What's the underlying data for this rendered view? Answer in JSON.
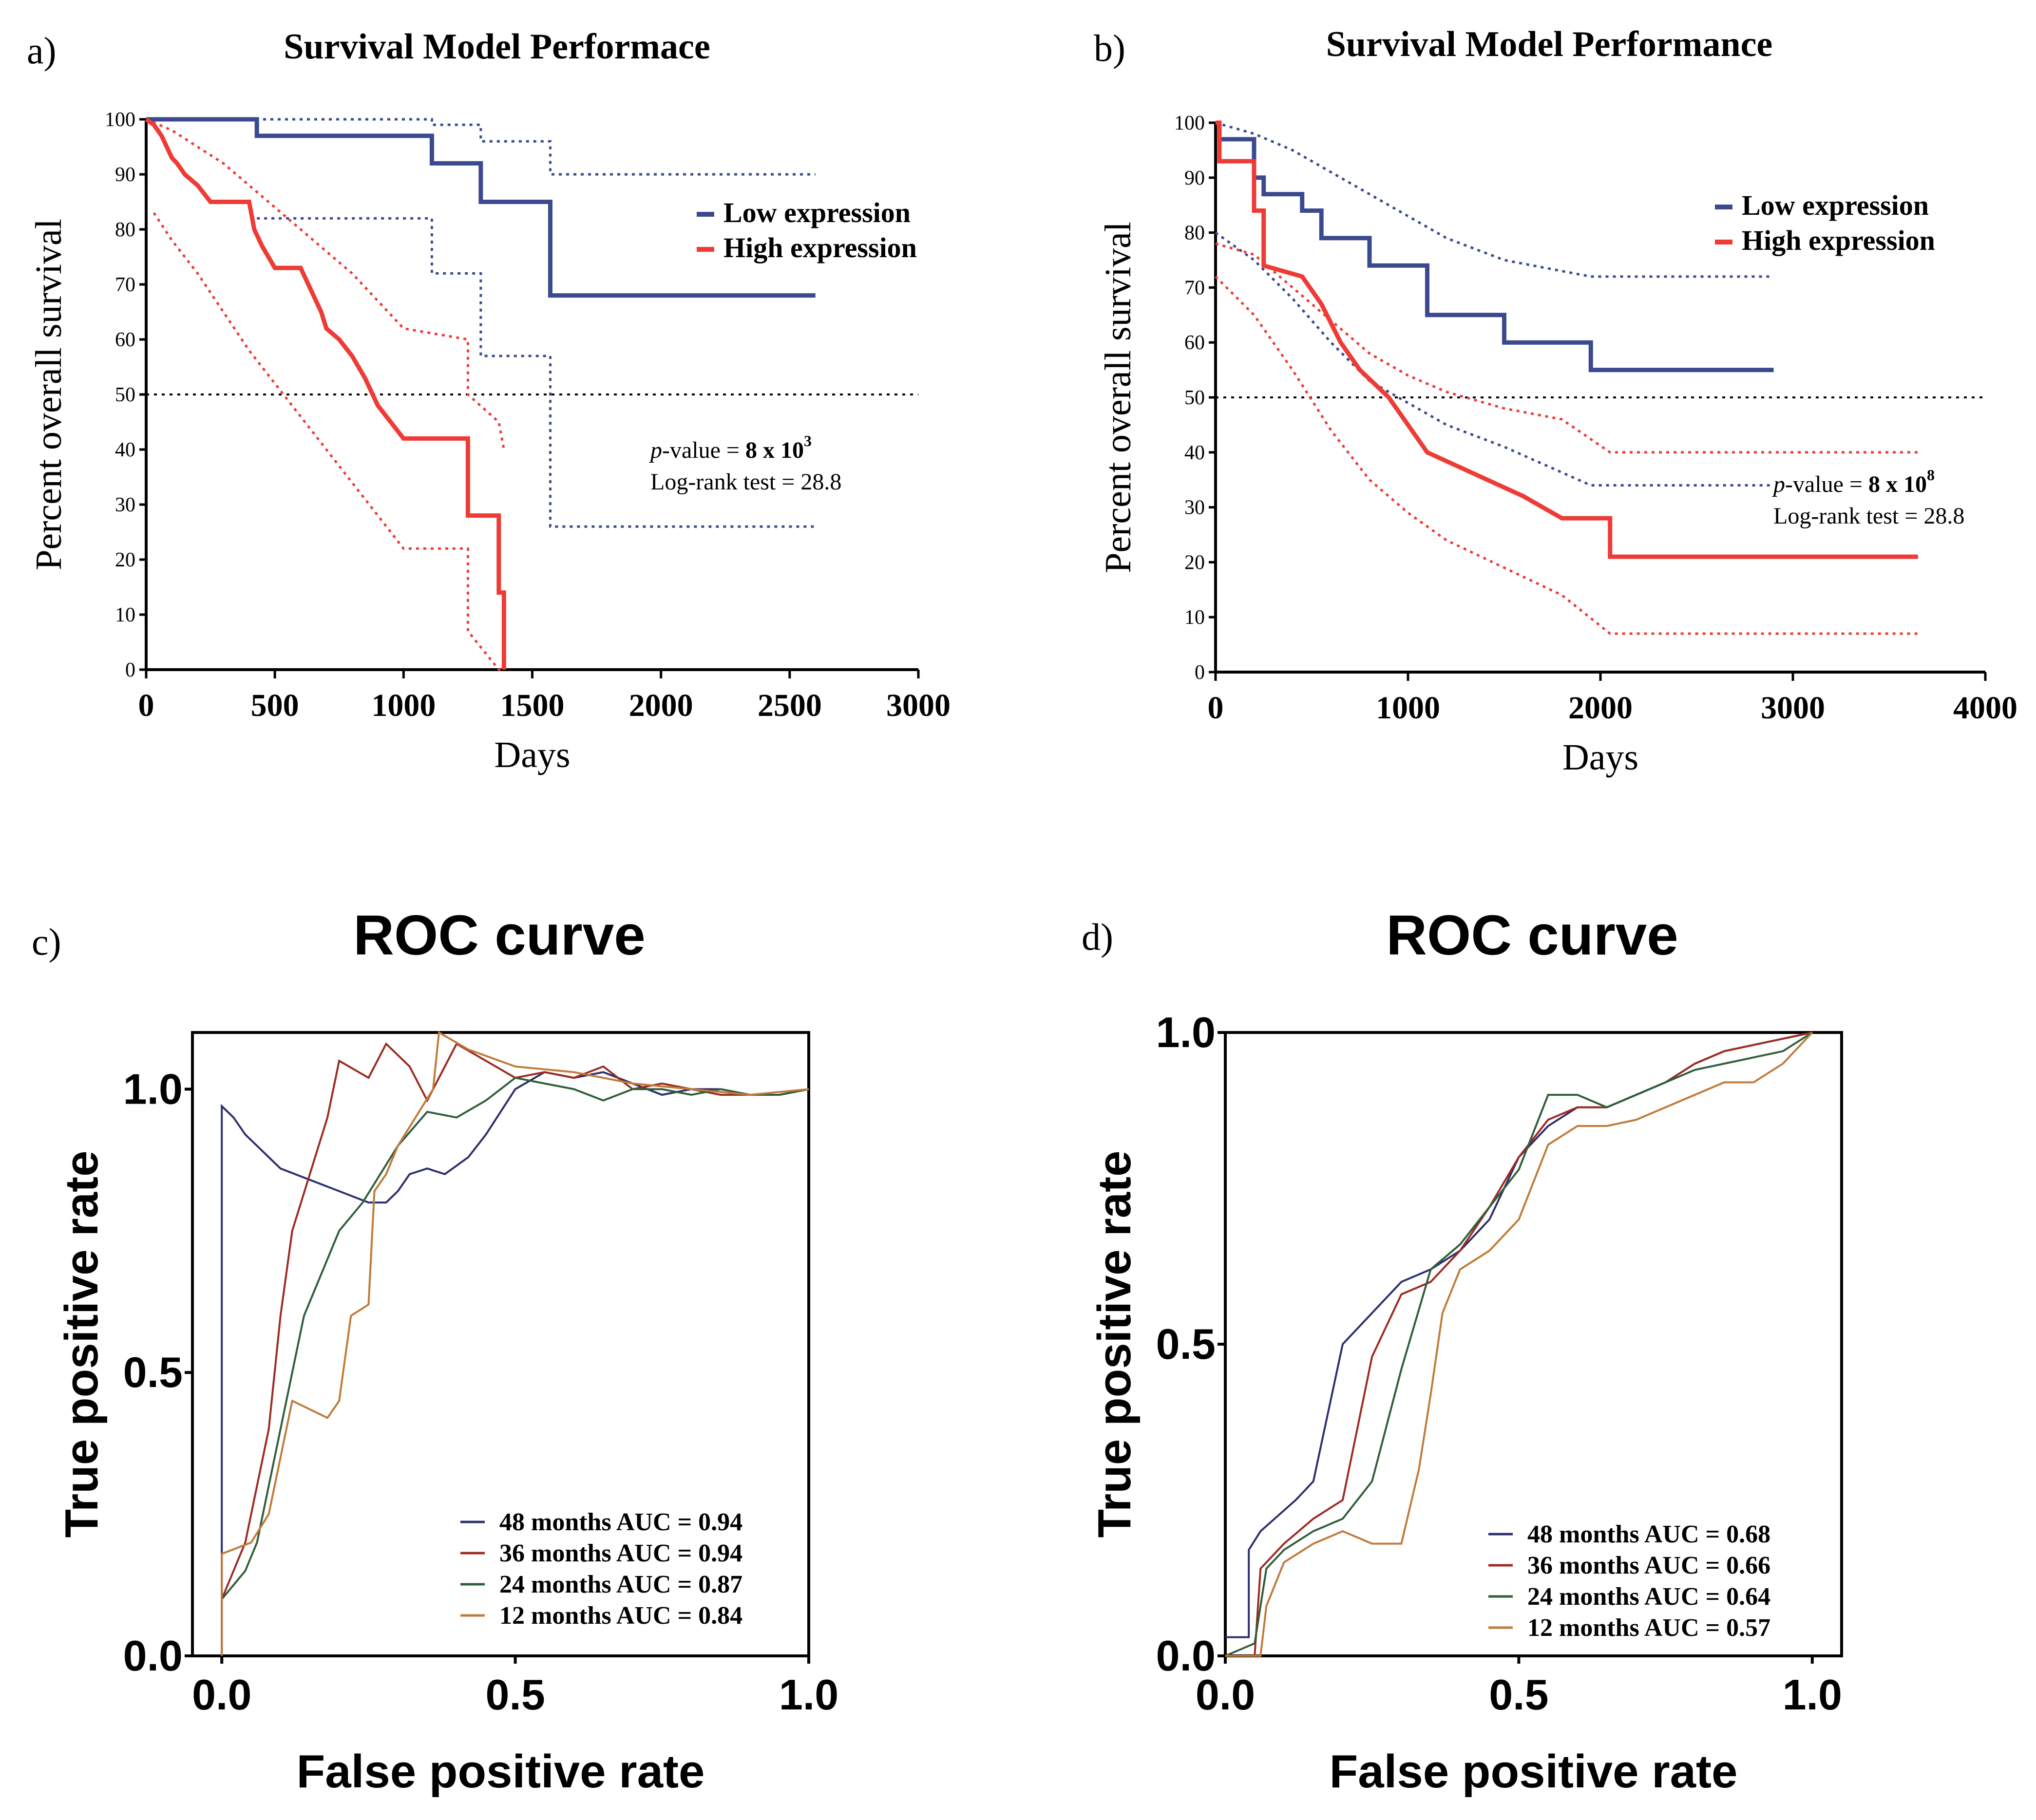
{
  "panel_labels": {
    "a": "a)",
    "b": "b)",
    "c": "c)",
    "d": "d)"
  },
  "colors": {
    "low": "#3b4a8f",
    "high": "#ee3b36",
    "roc48": "#2c2f6e",
    "roc36": "#9c2b22",
    "roc24": "#2f5e3a",
    "roc12": "#c07a3a",
    "axis": "#000000"
  },
  "chart_data": [
    {
      "type": "line",
      "panel": "a",
      "title": "Survival Model Performace",
      "xlabel": "Days",
      "ylabel": "Percent overall survival",
      "xlim": [
        0,
        3000
      ],
      "ylim": [
        0,
        100
      ],
      "xticks": [
        "0",
        "500",
        "1000",
        "1500",
        "2000",
        "2500",
        "3000"
      ],
      "yticks": [
        "0",
        "10",
        "20",
        "30",
        "40",
        "50",
        "60",
        "70",
        "80",
        "90",
        "100"
      ],
      "reference_line": 50,
      "annotation": {
        "p_prefix": "p",
        "p_text": "-value = ",
        "p_value": "8 x 10",
        "p_exp": "3",
        "logrank": "Log-rank test = 28.8"
      },
      "series": [
        {
          "name": "Low expression",
          "key": "low",
          "style": "solid",
          "x": [
            0,
            430,
            430,
            1110,
            1110,
            1300,
            1300,
            1570,
            1570,
            2600
          ],
          "y": [
            100,
            100,
            97,
            97,
            92,
            92,
            85,
            85,
            68,
            68
          ]
        },
        {
          "name": "Low CI upper",
          "key": "low",
          "style": "dotted",
          "x": [
            0,
            1110,
            1110,
            1300,
            1300,
            1570,
            1570,
            2600
          ],
          "y": [
            100,
            100,
            99,
            99,
            96,
            96,
            90,
            90
          ]
        },
        {
          "name": "Low CI lower",
          "key": "low",
          "style": "dotted",
          "x": [
            430,
            1110,
            1110,
            1300,
            1300,
            1570,
            1570,
            2600
          ],
          "y": [
            82,
            82,
            72,
            72,
            57,
            57,
            26,
            26
          ]
        },
        {
          "name": "High expression",
          "key": "high",
          "style": "solid",
          "x": [
            0,
            30,
            60,
            80,
            100,
            120,
            150,
            200,
            250,
            400,
            420,
            450,
            500,
            550,
            600,
            630,
            650,
            680,
            700,
            750,
            800,
            850,
            900,
            950,
            1000,
            1250,
            1250,
            1370,
            1370,
            1390,
            1390
          ],
          "y": [
            100,
            99,
            97,
            95,
            93,
            92,
            90,
            88,
            85,
            85,
            80,
            77,
            73,
            73,
            73,
            70,
            68,
            65,
            62,
            60,
            57,
            53,
            48,
            45,
            42,
            42,
            28,
            28,
            14,
            14,
            0
          ]
        },
        {
          "name": "High CI upper",
          "key": "high",
          "style": "dotted",
          "x": [
            0,
            100,
            200,
            300,
            400,
            500,
            600,
            700,
            800,
            900,
            1000,
            1250,
            1250,
            1370,
            1390
          ],
          "y": [
            100,
            98,
            95,
            92,
            88,
            84,
            80,
            76,
            72,
            67,
            62,
            60,
            50,
            45,
            40
          ]
        },
        {
          "name": "High CI lower",
          "key": "high",
          "style": "dotted",
          "x": [
            30,
            100,
            200,
            300,
            400,
            500,
            600,
            700,
            800,
            900,
            1000,
            1250,
            1250,
            1370,
            1390
          ],
          "y": [
            83,
            78,
            72,
            65,
            58,
            52,
            46,
            40,
            34,
            28,
            22,
            22,
            7,
            0,
            0
          ]
        }
      ]
    },
    {
      "type": "line",
      "panel": "b",
      "title": "Survival Model Performance",
      "xlabel": "Days",
      "ylabel": "Percent overall survival",
      "xlim": [
        0,
        4000
      ],
      "ylim": [
        0,
        100
      ],
      "xticks": [
        "0",
        "1000",
        "2000",
        "3000",
        "4000"
      ],
      "yticks": [
        "0",
        "10",
        "20",
        "30",
        "40",
        "50",
        "60",
        "70",
        "80",
        "90",
        "100"
      ],
      "reference_line": 50,
      "annotation": {
        "p_prefix": "p",
        "p_text": "-value = ",
        "p_value": "8 x 10",
        "p_exp": "8",
        "logrank": "Log-rank test = 28.8"
      },
      "series": [
        {
          "name": "Low expression",
          "key": "low",
          "style": "solid",
          "x": [
            0,
            20,
            20,
            200,
            200,
            250,
            250,
            450,
            450,
            550,
            550,
            800,
            800,
            1100,
            1100,
            1500,
            1500,
            1950,
            1950,
            2900
          ],
          "y": [
            100,
            100,
            97,
            97,
            90,
            90,
            87,
            87,
            84,
            84,
            79,
            79,
            74,
            74,
            65,
            65,
            60,
            60,
            55,
            55
          ]
        },
        {
          "name": "Low CI upper",
          "key": "low",
          "style": "dotted",
          "x": [
            0,
            200,
            400,
            600,
            800,
            1000,
            1200,
            1500,
            1950,
            2900
          ],
          "y": [
            100,
            98,
            95,
            91,
            87,
            83,
            79,
            75,
            72,
            72
          ]
        },
        {
          "name": "Low CI lower",
          "key": "low",
          "style": "dotted",
          "x": [
            0,
            200,
            400,
            600,
            800,
            1000,
            1200,
            1500,
            1950,
            2900
          ],
          "y": [
            80,
            75,
            68,
            60,
            53,
            49,
            45,
            41,
            34,
            34
          ]
        },
        {
          "name": "High expression",
          "key": "high",
          "style": "solid",
          "x": [
            0,
            20,
            20,
            200,
            200,
            250,
            250,
            450,
            550,
            650,
            750,
            900,
            1000,
            1100,
            1350,
            1600,
            1800,
            2050,
            2050,
            3650
          ],
          "y": [
            100,
            100,
            93,
            93,
            84,
            84,
            74,
            72,
            67,
            60,
            55,
            50,
            45,
            40,
            36,
            32,
            28,
            28,
            21,
            21
          ]
        },
        {
          "name": "High CI upper",
          "key": "high",
          "style": "dotted",
          "x": [
            0,
            200,
            400,
            600,
            800,
            1000,
            1200,
            1500,
            1800,
            2050,
            3650
          ],
          "y": [
            78,
            76,
            70,
            64,
            58,
            54,
            51,
            48,
            46,
            40,
            40
          ]
        },
        {
          "name": "High CI lower",
          "key": "high",
          "style": "dotted",
          "x": [
            0,
            200,
            400,
            600,
            800,
            1000,
            1200,
            1500,
            1800,
            2050,
            3650
          ],
          "y": [
            72,
            65,
            55,
            44,
            35,
            29,
            24,
            19,
            14,
            7,
            7
          ]
        }
      ],
      "legend": [
        "Low expression",
        "High expression"
      ]
    },
    {
      "type": "line",
      "panel": "c",
      "title": "ROC curve",
      "xlabel": "False positive rate",
      "ylabel": "True positive rate",
      "xlim": [
        -0.05,
        1.0
      ],
      "ylim": [
        0,
        1.1
      ],
      "xticks": [
        "0.0",
        "0.5",
        "1.0"
      ],
      "yticks": [
        "0.0",
        "0.5",
        "1.0"
      ],
      "series": [
        {
          "name": "48 months AUC = 0.94",
          "key": "roc48",
          "x": [
            0,
            0,
            0,
            0.02,
            0.04,
            0.06,
            0.08,
            0.1,
            0.2,
            0.25,
            0.28,
            0.3,
            0.32,
            0.35,
            0.38,
            0.42,
            0.45,
            0.5,
            0.55,
            0.6,
            0.65,
            0.7,
            0.75,
            0.8,
            0.85,
            0.9,
            0.95,
            1.0
          ],
          "y": [
            0,
            0.05,
            0.97,
            0.95,
            0.92,
            0.9,
            0.88,
            0.86,
            0.82,
            0.8,
            0.8,
            0.82,
            0.85,
            0.86,
            0.85,
            0.88,
            0.92,
            1.0,
            1.03,
            1.02,
            1.03,
            1.01,
            0.99,
            1.0,
            1.0,
            0.99,
            0.99,
            1.0
          ]
        },
        {
          "name": "36 months AUC = 0.94",
          "key": "roc36",
          "x": [
            0,
            0.02,
            0.04,
            0.06,
            0.08,
            0.1,
            0.12,
            0.15,
            0.18,
            0.2,
            0.25,
            0.28,
            0.32,
            0.35,
            0.4,
            0.45,
            0.5,
            0.55,
            0.6,
            0.65,
            0.7,
            0.75,
            0.8,
            0.85,
            0.9,
            0.95,
            1.0
          ],
          "y": [
            0.1,
            0.15,
            0.2,
            0.3,
            0.4,
            0.6,
            0.75,
            0.85,
            0.95,
            1.05,
            1.02,
            1.08,
            1.04,
            0.98,
            1.08,
            1.05,
            1.02,
            1.03,
            1.02,
            1.04,
            1.0,
            1.01,
            1.0,
            0.99,
            0.99,
            0.99,
            1.0
          ]
        },
        {
          "name": "24 months AUC = 0.87",
          "key": "roc24",
          "x": [
            0,
            0.04,
            0.06,
            0.08,
            0.1,
            0.12,
            0.14,
            0.16,
            0.2,
            0.24,
            0.27,
            0.3,
            0.35,
            0.4,
            0.45,
            0.5,
            0.55,
            0.6,
            0.65,
            0.7,
            0.75,
            0.8,
            0.85,
            0.9,
            0.95,
            1.0
          ],
          "y": [
            0.1,
            0.15,
            0.2,
            0.3,
            0.4,
            0.5,
            0.6,
            0.65,
            0.75,
            0.8,
            0.85,
            0.9,
            0.96,
            0.95,
            0.98,
            1.02,
            1.01,
            1.0,
            0.98,
            1.0,
            1.0,
            0.99,
            1.0,
            0.99,
            0.99,
            1.0
          ]
        },
        {
          "name": "12 months AUC = 0.84",
          "key": "roc12",
          "x": [
            0,
            0,
            0.05,
            0.08,
            0.1,
            0.12,
            0.18,
            0.2,
            0.22,
            0.25,
            0.26,
            0.28,
            0.3,
            0.33,
            0.36,
            0.37,
            0.42,
            0.5,
            0.6,
            0.7,
            0.8,
            0.9,
            1.0
          ],
          "y": [
            0,
            0.18,
            0.2,
            0.25,
            0.35,
            0.45,
            0.42,
            0.45,
            0.6,
            0.62,
            0.82,
            0.85,
            0.9,
            0.95,
            1.0,
            1.1,
            1.07,
            1.04,
            1.03,
            1.01,
            1.0,
            0.99,
            1.0
          ]
        }
      ],
      "legend": [
        "48 months AUC = 0.94",
        "36 months AUC = 0.94",
        "24 months AUC = 0.87",
        "12 months AUC = 0.84"
      ]
    },
    {
      "type": "line",
      "panel": "d",
      "title": "ROC curve",
      "xlabel": "False positive rate",
      "ylabel": "True positive rate",
      "xlim": [
        0,
        1.05
      ],
      "ylim": [
        0,
        1.0
      ],
      "xticks": [
        "0.0",
        "0.5",
        "1.0"
      ],
      "yticks": [
        "0.0",
        "0.5",
        "1.0"
      ],
      "series": [
        {
          "name": "48 months AUC = 0.68",
          "key": "roc48",
          "x": [
            0,
            0.04,
            0.04,
            0.06,
            0.12,
            0.15,
            0.2,
            0.25,
            0.3,
            0.35,
            0.4,
            0.45,
            0.5,
            0.55,
            0.6,
            0.65,
            0.7,
            0.75,
            0.8,
            0.85,
            0.9,
            0.95,
            1.0
          ],
          "y": [
            0.03,
            0.03,
            0.17,
            0.2,
            0.25,
            0.28,
            0.5,
            0.55,
            0.6,
            0.62,
            0.65,
            0.7,
            0.8,
            0.85,
            0.88,
            0.88,
            0.9,
            0.92,
            0.95,
            0.97,
            0.98,
            0.99,
            1.0
          ]
        },
        {
          "name": "36 months AUC = 0.66",
          "key": "roc36",
          "x": [
            0,
            0.05,
            0.06,
            0.1,
            0.15,
            0.2,
            0.25,
            0.3,
            0.35,
            0.4,
            0.45,
            0.5,
            0.55,
            0.6,
            0.65,
            0.7,
            0.75,
            0.8,
            0.85,
            0.9,
            0.95,
            1.0
          ],
          "y": [
            0,
            0.0,
            0.14,
            0.18,
            0.22,
            0.25,
            0.48,
            0.58,
            0.6,
            0.65,
            0.72,
            0.8,
            0.86,
            0.88,
            0.88,
            0.9,
            0.92,
            0.95,
            0.97,
            0.98,
            0.99,
            1.0
          ]
        },
        {
          "name": "24 months AUC = 0.64",
          "key": "roc24",
          "x": [
            0,
            0.05,
            0.07,
            0.1,
            0.15,
            0.2,
            0.25,
            0.3,
            0.35,
            0.4,
            0.45,
            0.5,
            0.55,
            0.6,
            0.65,
            0.7,
            0.75,
            0.8,
            0.85,
            0.9,
            0.95,
            1.0
          ],
          "y": [
            0,
            0.02,
            0.14,
            0.17,
            0.2,
            0.22,
            0.28,
            0.46,
            0.62,
            0.66,
            0.72,
            0.78,
            0.9,
            0.9,
            0.88,
            0.9,
            0.92,
            0.94,
            0.95,
            0.96,
            0.97,
            1.0
          ]
        },
        {
          "name": "12 months AUC = 0.57",
          "key": "roc12",
          "x": [
            0,
            0.06,
            0.07,
            0.1,
            0.15,
            0.2,
            0.25,
            0.3,
            0.33,
            0.35,
            0.37,
            0.4,
            0.45,
            0.5,
            0.55,
            0.6,
            0.65,
            0.7,
            0.75,
            0.8,
            0.85,
            0.9,
            0.95,
            1.0
          ],
          "y": [
            0,
            0.0,
            0.08,
            0.15,
            0.18,
            0.2,
            0.18,
            0.18,
            0.3,
            0.42,
            0.55,
            0.62,
            0.65,
            0.7,
            0.82,
            0.85,
            0.85,
            0.86,
            0.88,
            0.9,
            0.92,
            0.92,
            0.95,
            1.0
          ]
        }
      ],
      "legend": [
        "48 months AUC = 0.68",
        "36 months AUC = 0.66",
        "24 months AUC = 0.64",
        "12 months AUC = 0.57"
      ]
    }
  ],
  "legends_ab": [
    "Low expression",
    "High expression"
  ]
}
